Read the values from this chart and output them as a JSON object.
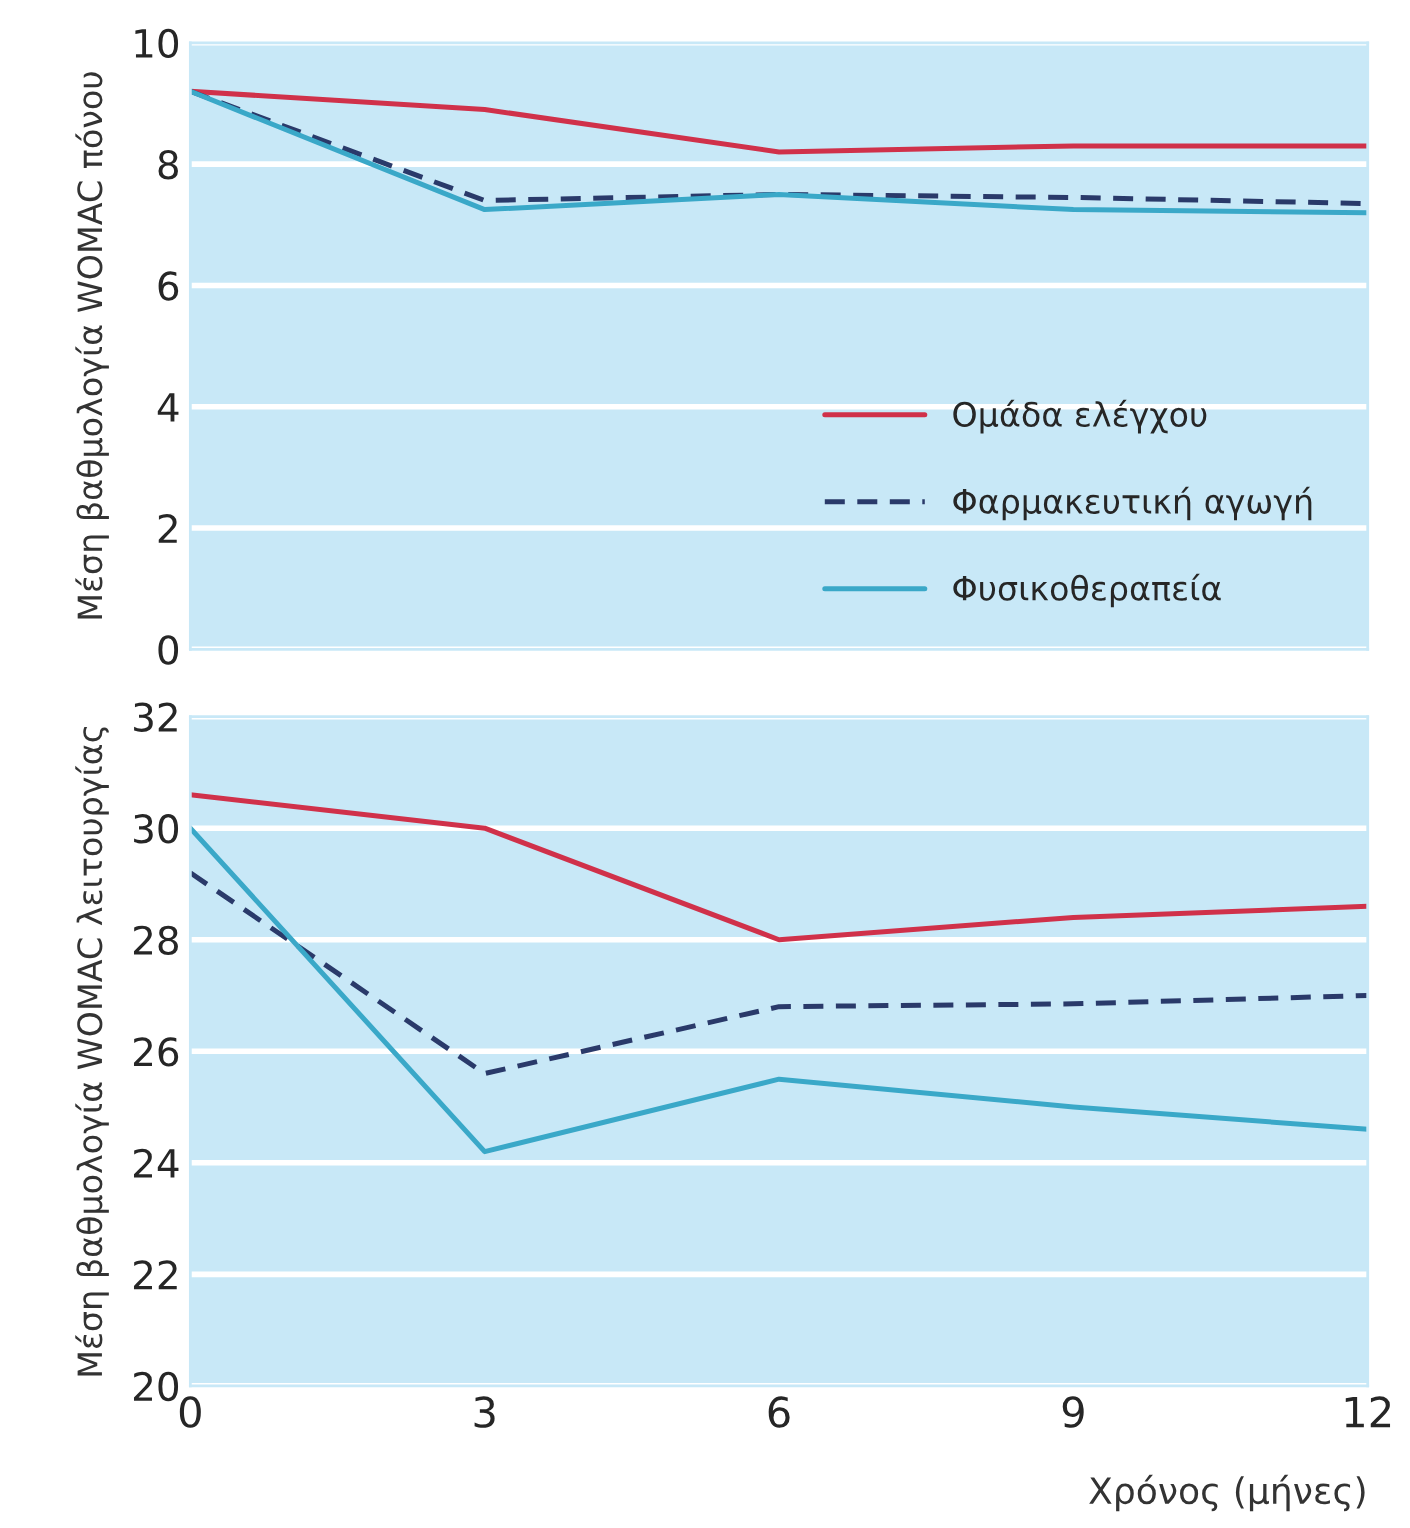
{
  "chart_data": [
    {
      "type": "line",
      "ylabel": "Μέση βαθμολογία WOMAC πόνου",
      "x": [
        0,
        3,
        6,
        9,
        12
      ],
      "xlim": [
        0,
        12
      ],
      "xticks": [
        0,
        3,
        6,
        9,
        12
      ],
      "ylim": [
        0,
        10
      ],
      "yticks": [
        0,
        2,
        4,
        6,
        8,
        10
      ],
      "tick_labels": "y",
      "grid": "y",
      "legend": "bottom right",
      "series": [
        {
          "name": "Ομάδα ελέγχου",
          "color": "#d0314a",
          "line_style": "solid",
          "values": [
            9.2,
            8.9,
            8.2,
            8.3,
            8.3
          ]
        },
        {
          "name": "Φαρμακευτική αγωγή",
          "color": "#2a3a6a",
          "line_style": "dashed",
          "values": [
            9.2,
            7.4,
            7.5,
            7.45,
            7.35
          ]
        },
        {
          "name": "Φυσικοθεραπεία",
          "color": "#3aa8c8",
          "line_style": "solid",
          "values": [
            9.2,
            7.25,
            7.5,
            7.25,
            7.2
          ]
        }
      ]
    },
    {
      "type": "line",
      "ylabel": "Μέση βαθμολογία WOMAC λειτουργίας",
      "xlabel": "Χρόνος (μήνες)",
      "x": [
        0,
        3,
        6,
        9,
        12
      ],
      "xlim": [
        0,
        12
      ],
      "xticks": [
        0,
        3,
        6,
        9,
        12
      ],
      "ylim": [
        20,
        32
      ],
      "yticks": [
        20,
        22,
        24,
        26,
        28,
        30,
        32
      ],
      "grid": "y",
      "series": [
        {
          "color": "#d0314a",
          "line_style": "solid",
          "values": [
            30.6,
            30.0,
            28.0,
            28.4,
            28.6
          ]
        },
        {
          "color": "#2a3a6a",
          "line_style": "dashed",
          "values": [
            29.2,
            25.6,
            26.8,
            26.85,
            27.0
          ]
        },
        {
          "color": "#3aa8c8",
          "line_style": "solid",
          "values": [
            30.0,
            24.2,
            25.5,
            25.0,
            24.6
          ]
        }
      ]
    }
  ]
}
